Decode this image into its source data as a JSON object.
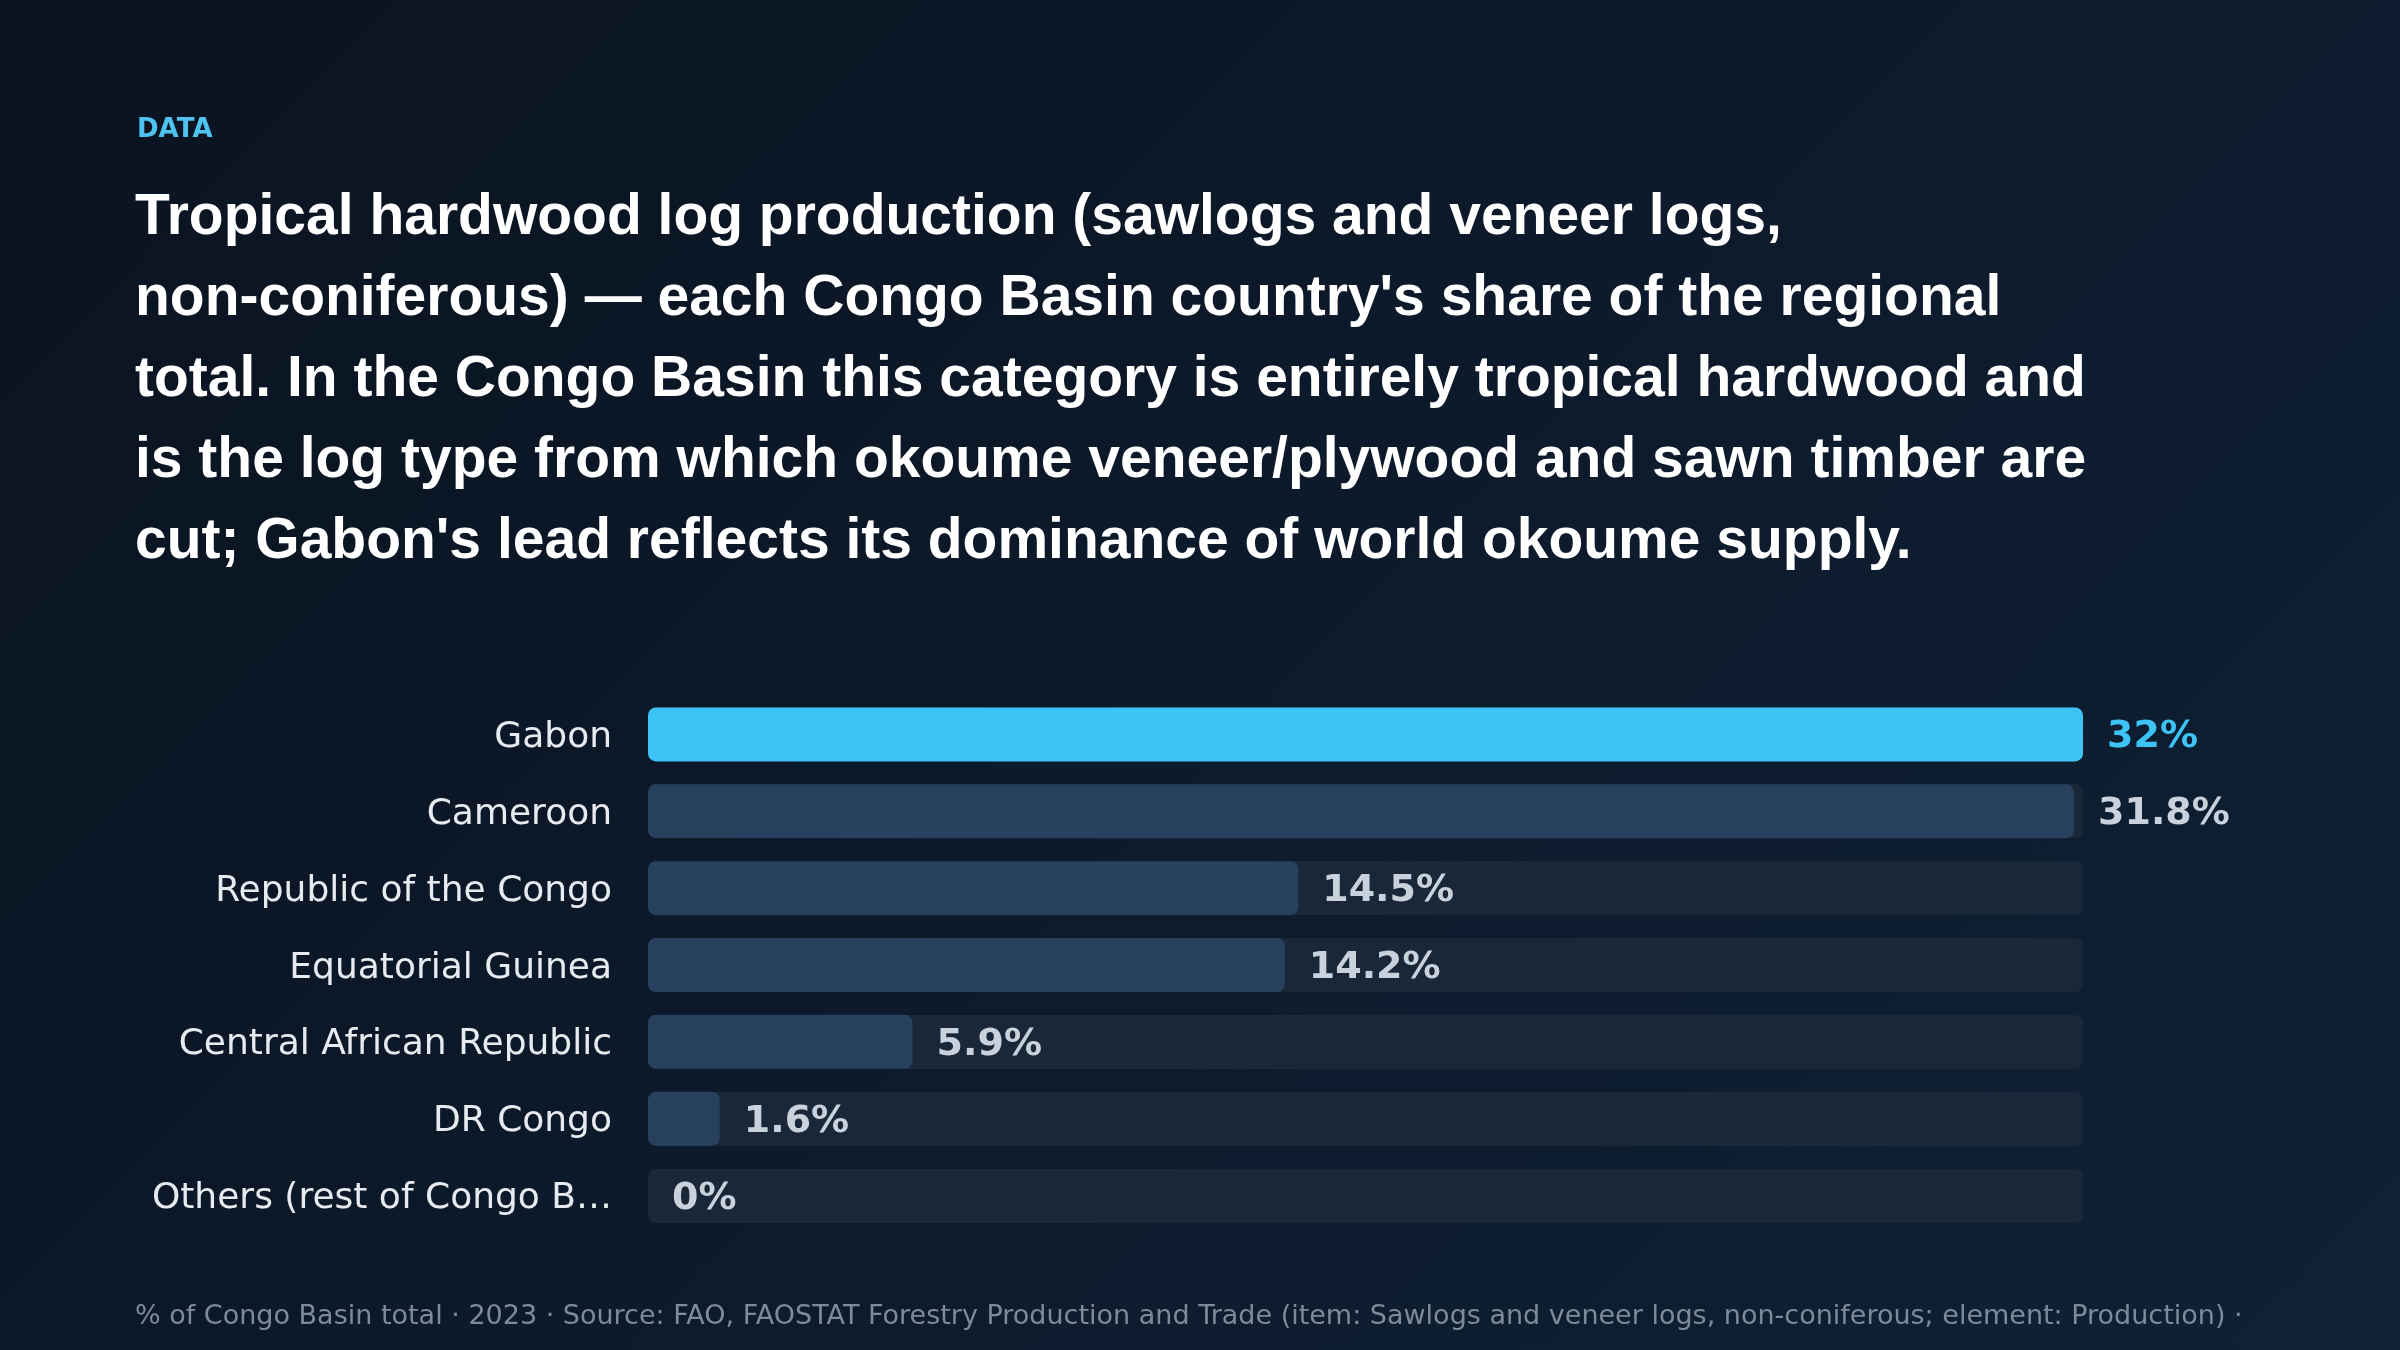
{
  "chart_data": {
    "type": "bar",
    "orientation": "horizontal",
    "subtitle": "DATA",
    "title": "Tropical hardwood log production (sawlogs and veneer logs, non-coniferous) — each Congo Basin country's share of the regional total. In the Congo Basin this category is entirely tropical hardwood and is the log type from which okoume veneer/plywood and sawn timber are cut; Gabon's lead reflects its dominance of world okoume supply.",
    "categories": [
      "Gabon",
      "Cameroon",
      "Republic of the Congo",
      "Equatorial Guinea",
      "Central African Republic",
      "DR Congo",
      "Others (rest of Congo B…"
    ],
    "values": [
      32,
      31.8,
      14.5,
      14.2,
      5.9,
      1.6,
      0
    ],
    "value_labels": [
      "32%",
      "31.8%",
      "14.5%",
      "14.2%",
      "5.9%",
      "1.6%",
      "0%"
    ],
    "colors": [
      "#3dc3f5",
      "#26405e",
      "#26405e",
      "#26405e",
      "#26405e",
      "#26405e",
      "#26405e"
    ],
    "xlim": [
      0,
      32
    ],
    "tick_labels": "y",
    "annotations": [
      "% of Congo Basin total · 2023 · Source: FAO, FAOSTAT Forestry Production and Trade (item: Sawlogs and veneer logs, non-coniferous; element: Production) ·"
    ]
  }
}
